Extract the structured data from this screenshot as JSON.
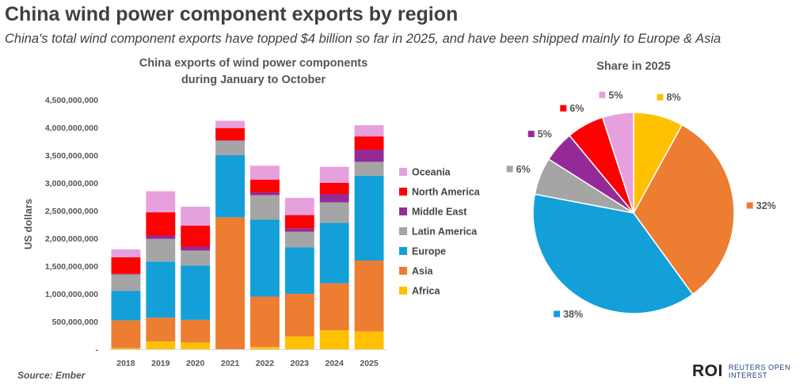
{
  "header": {
    "title": "China wind power component exports by region",
    "subtitle": "China's total wind component exports have topped $4 billion so far in 2025, and have been shipped mainly to Europe & Asia"
  },
  "footer": {
    "source": "Source:  Ember",
    "brand_logo": "ROI",
    "brand_text": "REUTERS OPEN INTEREST"
  },
  "chart_data": [
    {
      "type": "bar",
      "stacked": true,
      "title_line1": "China exports of wind power components",
      "title_line2": "during January to October",
      "ylabel": "US dollars",
      "ylim": [
        0,
        4500000000
      ],
      "yticks": [
        {
          "value": 0,
          "label": "-"
        },
        {
          "value": 500000000,
          "label": "500,000,000"
        },
        {
          "value": 1000000000,
          "label": "1,000,000,000"
        },
        {
          "value": 1500000000,
          "label": "1,500,000,000"
        },
        {
          "value": 2000000000,
          "label": "2,000,000,000"
        },
        {
          "value": 2500000000,
          "label": "2,500,000,000"
        },
        {
          "value": 3000000000,
          "label": "3,000,000,000"
        },
        {
          "value": 3500000000,
          "label": "3,500,000,000"
        },
        {
          "value": 4000000000,
          "label": "4,000,000,000"
        },
        {
          "value": 4500000000,
          "label": "4,500,000,000"
        }
      ],
      "categories": [
        "2018",
        "2019",
        "2020",
        "2021",
        "2022",
        "2023",
        "2024",
        "2025"
      ],
      "series": [
        {
          "name": "Africa",
          "color": "#FFC000",
          "values": [
            20000000,
            140000000,
            120000000,
            0,
            40000000,
            230000000,
            340000000,
            320000000
          ]
        },
        {
          "name": "Asia",
          "color": "#ED7D31",
          "values": [
            500000000,
            430000000,
            410000000,
            2380000000,
            910000000,
            770000000,
            850000000,
            1280000000
          ]
        },
        {
          "name": "Europe",
          "color": "#13A0D8",
          "values": [
            530000000,
            1010000000,
            980000000,
            1120000000,
            1390000000,
            840000000,
            1090000000,
            1530000000
          ]
        },
        {
          "name": "Latin America",
          "color": "#A5A5A5",
          "values": [
            300000000,
            410000000,
            270000000,
            260000000,
            440000000,
            280000000,
            370000000,
            250000000
          ]
        },
        {
          "name": "Middle East",
          "color": "#952A97",
          "values": [
            10000000,
            60000000,
            70000000,
            10000000,
            50000000,
            60000000,
            150000000,
            220000000
          ]
        },
        {
          "name": "North America",
          "color": "#FF0000",
          "values": [
            300000000,
            420000000,
            380000000,
            220000000,
            230000000,
            240000000,
            200000000,
            240000000
          ]
        },
        {
          "name": "Oceania",
          "color": "#E7A0DE",
          "values": [
            140000000,
            380000000,
            340000000,
            130000000,
            250000000,
            310000000,
            290000000,
            200000000
          ]
        }
      ],
      "legend_order": [
        "Oceania",
        "North America",
        "Middle East",
        "Latin America",
        "Europe",
        "Asia",
        "Africa"
      ]
    },
    {
      "type": "pie",
      "title": "Share in 2025",
      "slices": [
        {
          "name": "Africa",
          "value": 8,
          "label": "8%",
          "color": "#FFC000"
        },
        {
          "name": "Asia",
          "value": 32,
          "label": "32%",
          "color": "#ED7D31"
        },
        {
          "name": "Europe",
          "value": 38,
          "label": "38%",
          "color": "#13A0D8"
        },
        {
          "name": "Latin America",
          "value": 6,
          "label": "6%",
          "color": "#A5A5A5"
        },
        {
          "name": "Middle East",
          "value": 5,
          "label": "5%",
          "color": "#952A97"
        },
        {
          "name": "North America",
          "value": 6,
          "label": "6%",
          "color": "#FF0000"
        },
        {
          "name": "Oceania",
          "value": 5,
          "label": "5%",
          "color": "#E7A0DE"
        }
      ]
    }
  ]
}
